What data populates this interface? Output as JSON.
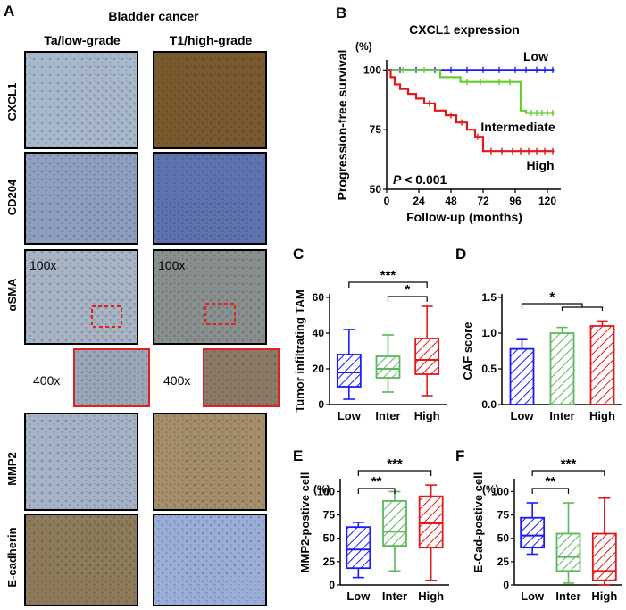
{
  "figure": {
    "panel_letters": [
      "A",
      "B",
      "C",
      "D",
      "E",
      "F"
    ],
    "panel_a": {
      "title": "Bladder cancer",
      "col_headers": [
        "Ta/low-grade",
        "T1/high-grade"
      ],
      "row_labels": [
        "CXCL1",
        "CD204",
        "αSMA",
        "MMP2",
        "E-cadherin"
      ],
      "magnification_low": "100x",
      "magnification_high": "400x",
      "image_tints": {
        "cxcl1_low": "#a9b9cc",
        "cxcl1_high": "#7a5a2e",
        "cd204_low": "#8f9fbf",
        "cd204_high": "#5f73b0",
        "asma_low": "#a8b5c5",
        "asma_high": "#8a8f90",
        "mmp2_low": "#a6b4c8",
        "mmp2_high": "#a58e6a",
        "ecad_low": "#8e7b5c",
        "ecad_high": "#9aaed8"
      }
    },
    "colors": {
      "low": "#1a1aff",
      "inter": "#5cb85c",
      "inter_km": "#66cc33",
      "high": "#e01a1a",
      "zoom_box": "#e32020"
    }
  },
  "chart_data": [
    {
      "panel": "B",
      "type": "line",
      "title": "CXCL1 expression",
      "xlabel": "Follow-up (months)",
      "ylabel": "Progression-free survival",
      "yunit": "(%)",
      "xticks": [
        0,
        24,
        48,
        72,
        96,
        120
      ],
      "yticks": [
        50,
        75,
        100
      ],
      "xlim": [
        0,
        130
      ],
      "ylim": [
        50,
        102
      ],
      "annotation": "P < 0.001",
      "series": [
        {
          "name": "Low",
          "steps": [
            [
              0,
              100
            ],
            [
              125,
              100
            ]
          ],
          "censor": [
            10,
            22,
            36,
            48,
            60,
            72,
            84,
            96,
            104,
            112,
            118,
            124
          ]
        },
        {
          "name": "Intermediate",
          "steps": [
            [
              0,
              100
            ],
            [
              40,
              100
            ],
            [
              40,
              97
            ],
            [
              55,
              97
            ],
            [
              55,
              95
            ],
            [
              100,
              95
            ],
            [
              100,
              83
            ],
            [
              104,
              83
            ],
            [
              104,
              82
            ],
            [
              125,
              82
            ]
          ],
          "censor": [
            12,
            28,
            60,
            70,
            84,
            92,
            108,
            112,
            116,
            120,
            124
          ]
        },
        {
          "name": "High",
          "steps": [
            [
              0,
              100
            ],
            [
              3,
              100
            ],
            [
              3,
              97
            ],
            [
              6,
              97
            ],
            [
              6,
              94
            ],
            [
              10,
              94
            ],
            [
              10,
              92
            ],
            [
              16,
              92
            ],
            [
              16,
              90
            ],
            [
              22,
              90
            ],
            [
              22,
              88
            ],
            [
              28,
              88
            ],
            [
              28,
              86
            ],
            [
              36,
              86
            ],
            [
              36,
              83
            ],
            [
              44,
              83
            ],
            [
              44,
              81
            ],
            [
              52,
              81
            ],
            [
              52,
              78
            ],
            [
              60,
              78
            ],
            [
              60,
              75
            ],
            [
              66,
              75
            ],
            [
              66,
              72
            ],
            [
              72,
              72
            ],
            [
              72,
              66
            ],
            [
              125,
              66
            ]
          ],
          "censor": [
            32,
            48,
            56,
            68,
            78,
            86,
            94,
            100,
            106,
            112,
            118,
            124
          ]
        }
      ]
    },
    {
      "panel": "C",
      "type": "box",
      "ylabel": "Tumor infiltrating TAM",
      "categories": [
        "Low",
        "Inter",
        "High"
      ],
      "ylim": [
        0,
        60
      ],
      "yticks": [
        0,
        20,
        40,
        60
      ],
      "boxes": [
        {
          "min": 3,
          "q1": 10,
          "median": 18,
          "q3": 28,
          "max": 42
        },
        {
          "min": 7,
          "q1": 15,
          "median": 20,
          "q3": 27,
          "max": 39
        },
        {
          "min": 5,
          "q1": 17,
          "median": 25,
          "q3": 37,
          "max": 55
        }
      ],
      "brackets": [
        {
          "from": 0,
          "to": 2,
          "label": "***"
        },
        {
          "from": 1,
          "to": 2,
          "label": "*"
        }
      ]
    },
    {
      "panel": "D",
      "type": "bar",
      "ylabel": "CAF score",
      "categories": [
        "Low",
        "Inter",
        "High"
      ],
      "ylim": [
        0,
        1.5
      ],
      "yticks": [
        "0.0",
        "0.5",
        "1.0",
        "1.5"
      ],
      "values": [
        0.78,
        1.0,
        1.1
      ],
      "errors": [
        0.13,
        0.08,
        0.07
      ],
      "brackets": [
        {
          "from": 0,
          "to": 1.5,
          "label": "*"
        }
      ]
    },
    {
      "panel": "E",
      "type": "box",
      "ylabel": "MMP2-postive cell",
      "yunit": "(%)",
      "categories": [
        "Low",
        "Inter",
        "High"
      ],
      "ylim": [
        0,
        110
      ],
      "yticks": [
        0,
        25,
        50,
        75,
        100
      ],
      "boxes": [
        {
          "min": 8,
          "q1": 18,
          "median": 38,
          "q3": 62,
          "max": 67
        },
        {
          "min": 15,
          "q1": 42,
          "median": 57,
          "q3": 90,
          "max": 100
        },
        {
          "min": 5,
          "q1": 40,
          "median": 66,
          "q3": 95,
          "max": 107
        }
      ],
      "brackets": [
        {
          "from": 0,
          "to": 2,
          "label": "***"
        },
        {
          "from": 0,
          "to": 1,
          "label": "**"
        }
      ]
    },
    {
      "panel": "F",
      "type": "box",
      "ylabel": "E-Cad-postive cell",
      "yunit": "(%)",
      "categories": [
        "Low",
        "Inter",
        "High"
      ],
      "ylim": [
        0,
        110
      ],
      "yticks": [
        0,
        25,
        50,
        75,
        100
      ],
      "boxes": [
        {
          "min": 33,
          "q1": 40,
          "median": 53,
          "q3": 72,
          "max": 88
        },
        {
          "min": 2,
          "q1": 15,
          "median": 30,
          "q3": 55,
          "max": 88
        },
        {
          "min": 0,
          "q1": 5,
          "median": 15,
          "q3": 55,
          "max": 93
        }
      ],
      "brackets": [
        {
          "from": 0,
          "to": 2,
          "label": "***"
        },
        {
          "from": 0,
          "to": 1,
          "label": "**"
        }
      ]
    }
  ]
}
